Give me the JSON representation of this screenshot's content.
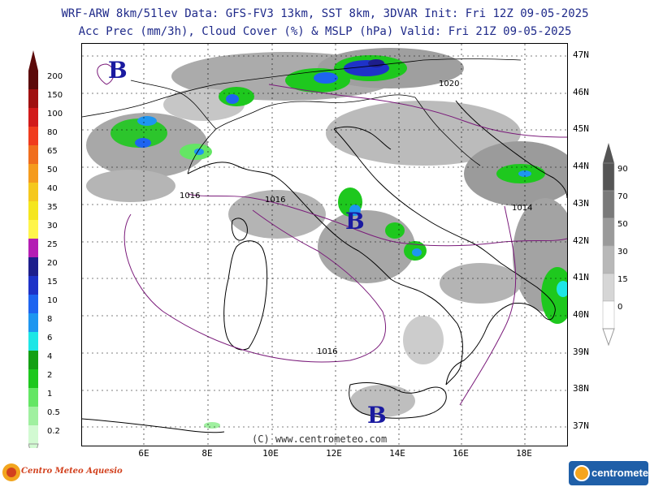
{
  "header": {
    "line1": "WRF-ARW 8km/51lev  Data: GFS-FV3 13km, SST 8km, 3DVAR  Init: Fri 12Z 09-05-2025",
    "line2": "Acc Prec (mm/3h), Cloud Cover (%) & MSLP (hPa)  Valid: Fri 21Z 09-05-2025"
  },
  "precip_legend": {
    "labels": [
      "200",
      "150",
      "100",
      "80",
      "65",
      "50",
      "40",
      "35",
      "30",
      "25",
      "20",
      "15",
      "10",
      "8",
      "6",
      "4",
      "2",
      "1",
      "0.5",
      "0.2"
    ],
    "colors": [
      "#5c0a0a",
      "#a01010",
      "#d21a1a",
      "#f03c1e",
      "#f06e1e",
      "#f59b1e",
      "#f5c81e",
      "#f5e61e",
      "#fff54b",
      "#b41eb4",
      "#1e1e8c",
      "#1e32c8",
      "#1e64f0",
      "#1e96f0",
      "#1ee6e6",
      "#14a014",
      "#1ec81e",
      "#64e664",
      "#a0f0a0",
      "#d2fad2"
    ]
  },
  "cloud_legend": {
    "labels": [
      "90",
      "70",
      "50",
      "30",
      "15",
      "0"
    ],
    "colors": [
      "#555555",
      "#7a7a7a",
      "#9a9a9a",
      "#b8b8b8",
      "#d6d6d6",
      "#ffffff"
    ]
  },
  "map": {
    "lat_labels": [
      "47N",
      "46N",
      "45N",
      "44N",
      "43N",
      "42N",
      "41N",
      "40N",
      "39N",
      "38N",
      "37N"
    ],
    "lon_labels": [
      "6E",
      "8E",
      "10E",
      "12E",
      "14E",
      "16E",
      "18E"
    ],
    "isobars": [
      "1020",
      "1016",
      "1016",
      "1014",
      "1016"
    ],
    "pressure_centers": [
      "B",
      "B",
      "B"
    ],
    "credit": "(C) www.centrometeo.com"
  },
  "logos": {
    "left": "Centro Meteo Aquesio",
    "right": "centrometeo"
  }
}
